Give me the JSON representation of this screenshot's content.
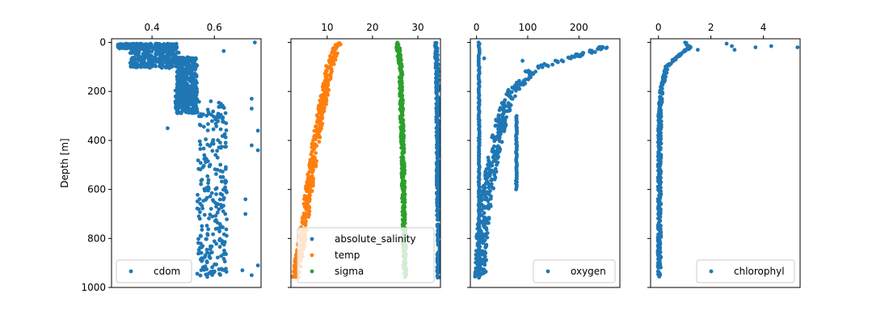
{
  "chart_data": [
    {
      "type": "scatter",
      "xlabel": "",
      "ylabel": "Depth [m]",
      "xlim": [
        0.27,
        0.75
      ],
      "ylim": [
        1000,
        -15
      ],
      "xticks": [
        0.4,
        0.6
      ],
      "xtick_labels": [
        "0.4",
        "0.6"
      ],
      "yticks": [
        0,
        200,
        400,
        600,
        800,
        1000
      ],
      "ytick_labels": [
        "0",
        "200",
        "400",
        "600",
        "800",
        "1000"
      ],
      "x_axis_position": "top",
      "grid": false,
      "legend_position": "lower-left",
      "series": [
        {
          "name": "cdom",
          "color": "#1f77b4",
          "segments": [
            {
              "y_range": [
                5,
                25
              ],
              "x_range": [
                0.29,
                0.48
              ]
            },
            {
              "y_range": [
                25,
                105
              ],
              "x_range": [
                0.33,
                0.49
              ]
            },
            {
              "y_range": [
                60,
                185
              ],
              "x_range": [
                0.48,
                0.545
              ]
            },
            {
              "y_range": [
                185,
                290
              ],
              "x_range": [
                0.475,
                0.545
              ]
            },
            {
              "y_range": [
                240,
                960
              ],
              "x_range": [
                0.545,
                0.64
              ]
            }
          ],
          "outliers": [
            [
              0.45,
              350
            ],
            [
              0.72,
              230
            ],
            [
              0.72,
              270
            ],
            [
              0.74,
              360
            ],
            [
              0.74,
              440
            ],
            [
              0.72,
              420
            ],
            [
              0.7,
              640
            ],
            [
              0.7,
              700
            ],
            [
              0.74,
              910
            ],
            [
              0.72,
              950
            ],
            [
              0.69,
              930
            ],
            [
              0.73,
              0
            ],
            [
              0.63,
              35
            ]
          ]
        }
      ]
    },
    {
      "type": "scatter",
      "xlabel": "",
      "ylabel": "",
      "xlim": [
        2,
        35
      ],
      "ylim": [
        1000,
        -15
      ],
      "xticks": [
        10,
        20,
        30
      ],
      "xtick_labels": [
        "10",
        "20",
        "30"
      ],
      "yticks": [
        0,
        200,
        400,
        600,
        800,
        1000
      ],
      "x_axis_position": "top",
      "grid": false,
      "legend_position": "lower-right",
      "series": [
        {
          "name": "absolute_salinity",
          "color": "#1f77b4",
          "profile": [
            [
              0,
              34.0
            ],
            [
              100,
              34.2
            ],
            [
              400,
              34.4
            ],
            [
              960,
              34.6
            ]
          ],
          "spread": 0.6
        },
        {
          "name": "temp",
          "color": "#ff7f0e",
          "profile": [
            [
              0,
              12.5
            ],
            [
              100,
              10.5
            ],
            [
              200,
              9.5
            ],
            [
              400,
              7.5
            ],
            [
              600,
              6.0
            ],
            [
              800,
              4.5
            ],
            [
              960,
              3.0
            ]
          ],
          "spread": 1.6
        },
        {
          "name": "sigma",
          "color": "#2ca02c",
          "profile": [
            [
              0,
              25.5
            ],
            [
              100,
              26.2
            ],
            [
              400,
              26.6
            ],
            [
              960,
              27.2
            ]
          ],
          "spread": 0.7
        }
      ]
    },
    {
      "type": "scatter",
      "xlabel": "",
      "ylabel": "",
      "xlim": [
        -12,
        280
      ],
      "ylim": [
        1000,
        -15
      ],
      "xticks": [
        0,
        100,
        200
      ],
      "xtick_labels": [
        "0",
        "100",
        "200"
      ],
      "yticks": [
        0,
        200,
        400,
        600,
        800,
        1000
      ],
      "x_axis_position": "top",
      "grid": false,
      "legend_position": "lower-right",
      "series": [
        {
          "name": "oxygen",
          "color": "#1f77b4",
          "profile": [
            [
              15,
              255
            ],
            [
              40,
              220
            ],
            [
              70,
              170
            ],
            [
              110,
              110
            ],
            [
              200,
              70
            ],
            [
              300,
              50
            ],
            [
              400,
              40
            ],
            [
              500,
              30
            ],
            [
              600,
              22
            ],
            [
              700,
              15
            ],
            [
              800,
              10
            ],
            [
              960,
              7
            ]
          ],
          "spread": 22,
          "vertical_bars": [
            {
              "x": 5,
              "y_range": [
                0,
                960
              ]
            },
            {
              "x": 78,
              "y_range": [
                300,
                600
              ]
            }
          ],
          "outliers": [
            [
              15,
              65
            ],
            [
              90,
              75
            ]
          ]
        }
      ]
    },
    {
      "type": "scatter",
      "xlabel": "",
      "ylabel": "",
      "xlim": [
        -0.3,
        5.4
      ],
      "ylim": [
        1000,
        -15
      ],
      "xticks": [
        0,
        2,
        4
      ],
      "xtick_labels": [
        "0",
        "2",
        "4"
      ],
      "yticks": [
        0,
        200,
        400,
        600,
        800,
        1000
      ],
      "x_axis_position": "top",
      "grid": false,
      "legend_position": "lower-right",
      "series": [
        {
          "name": "chlorophyl",
          "color": "#1f77b4",
          "profile": [
            [
              0,
              1.0
            ],
            [
              20,
              1.2
            ],
            [
              50,
              0.8
            ],
            [
              100,
              0.3
            ],
            [
              200,
              0.1
            ],
            [
              300,
              0.05
            ],
            [
              960,
              0.03
            ]
          ],
          "spread": 0.12,
          "outliers": [
            [
              2.6,
              5
            ],
            [
              2.8,
              15
            ],
            [
              3.7,
              20
            ],
            [
              4.3,
              15
            ],
            [
              5.3,
              20
            ],
            [
              2.9,
              30
            ],
            [
              1.5,
              30
            ]
          ]
        }
      ]
    }
  ]
}
